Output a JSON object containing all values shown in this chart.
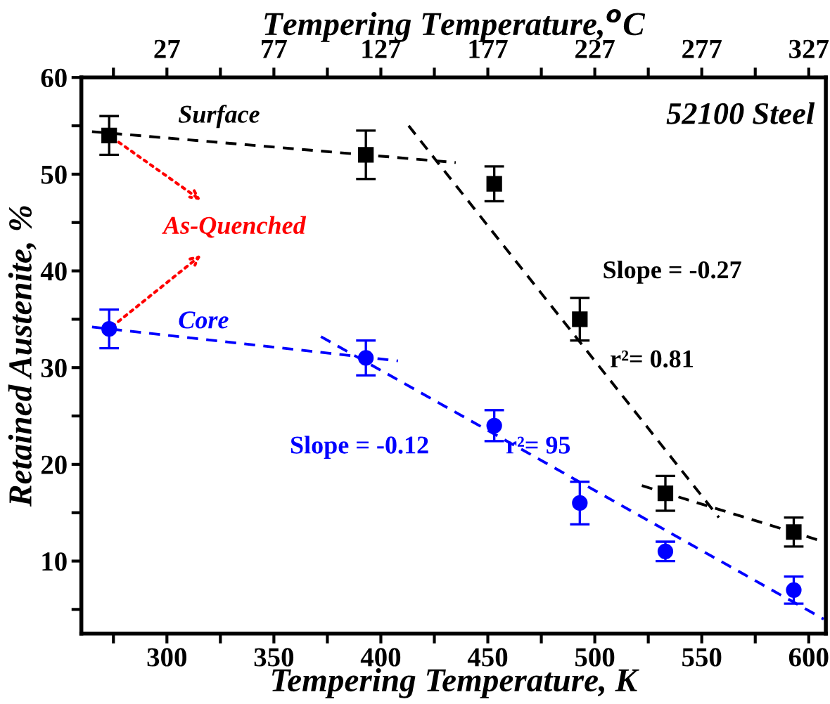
{
  "chart_data": {
    "type": "scatter",
    "xlabel": "Tempering Temperature, K",
    "ylabel": "Retained Austenite, %",
    "x2label": "Tempering Temperature,$^{o}$C",
    "xlim": [
      260,
      608
    ],
    "ylim": [
      2.5,
      60
    ],
    "x2lim": [
      -13,
      335
    ],
    "xticks": [
      {
        "value": 275,
        "label": null
      },
      300,
      {
        "value": 325,
        "label": null
      },
      350,
      {
        "value": 375,
        "label": null
      },
      400,
      {
        "value": 425,
        "label": null
      },
      450,
      {
        "value": 475,
        "label": null
      },
      500,
      {
        "value": 525,
        "label": null
      },
      550,
      {
        "value": 575,
        "label": null
      },
      600
    ],
    "yticks": [
      {
        "value": 5,
        "label": null
      },
      10,
      {
        "value": 15,
        "label": null
      },
      20,
      {
        "value": 25,
        "label": null
      },
      30,
      {
        "value": 35,
        "label": null
      },
      40,
      {
        "value": 45,
        "label": null
      },
      50,
      {
        "value": 55,
        "label": null
      },
      60
    ],
    "x2ticks": [
      {
        "value": 2,
        "label": null
      },
      27,
      {
        "value": 52,
        "label": null
      },
      77,
      {
        "value": 102,
        "label": null
      },
      127,
      {
        "value": 152,
        "label": null
      },
      177,
      {
        "value": 202,
        "label": null
      },
      227,
      {
        "value": 252,
        "label": null
      },
      277,
      {
        "value": 302,
        "label": null
      },
      327
    ],
    "grid": false,
    "legend": false,
    "series": [
      {
        "marker": "square",
        "color": "#000000",
        "x": [
          273,
          393,
          453,
          493,
          533,
          593
        ],
        "values": [
          54,
          52,
          49,
          35,
          17,
          13
        ],
        "errors": [
          2,
          2.5,
          1.8,
          2.2,
          1.8,
          1.5
        ]
      },
      {
        "marker": "circle",
        "color": "#0000ff",
        "x": [
          273,
          393,
          453,
          493,
          533,
          593
        ],
        "values": [
          34,
          31,
          24,
          16,
          11,
          7
        ],
        "errors": [
          2,
          1.8,
          1.6,
          2.2,
          1.0,
          1.4
        ]
      },
      {
        "type": "line",
        "line_style": "dashed",
        "color": "#000000",
        "x": [
          265,
          435
        ],
        "values": [
          54.4,
          51.2
        ]
      },
      {
        "type": "line",
        "line_style": "dashed",
        "color": "#000000",
        "x": [
          413,
          558
        ],
        "values": [
          55,
          14.5
        ]
      },
      {
        "type": "line",
        "line_style": "dashed",
        "color": "#000000",
        "x": [
          522,
          607
        ],
        "values": [
          17.8,
          12
        ]
      },
      {
        "type": "line",
        "line_style": "dashed",
        "color": "#0000ff",
        "x": [
          265,
          408
        ],
        "values": [
          34.2,
          30.7
        ]
      },
      {
        "type": "line",
        "line_style": "dashed",
        "color": "#0000ff",
        "x": [
          372,
          607
        ],
        "values": [
          33.2,
          4
        ]
      }
    ],
    "annotations": [
      "52100 Steel",
      "Surface",
      "Core",
      {
        "text": "As-Quenched",
        "x": 273,
        "y": 54
      },
      "Slope = -0.27",
      "r²= 0.81",
      "Slope = -0.12",
      "r²= 95"
    ]
  }
}
